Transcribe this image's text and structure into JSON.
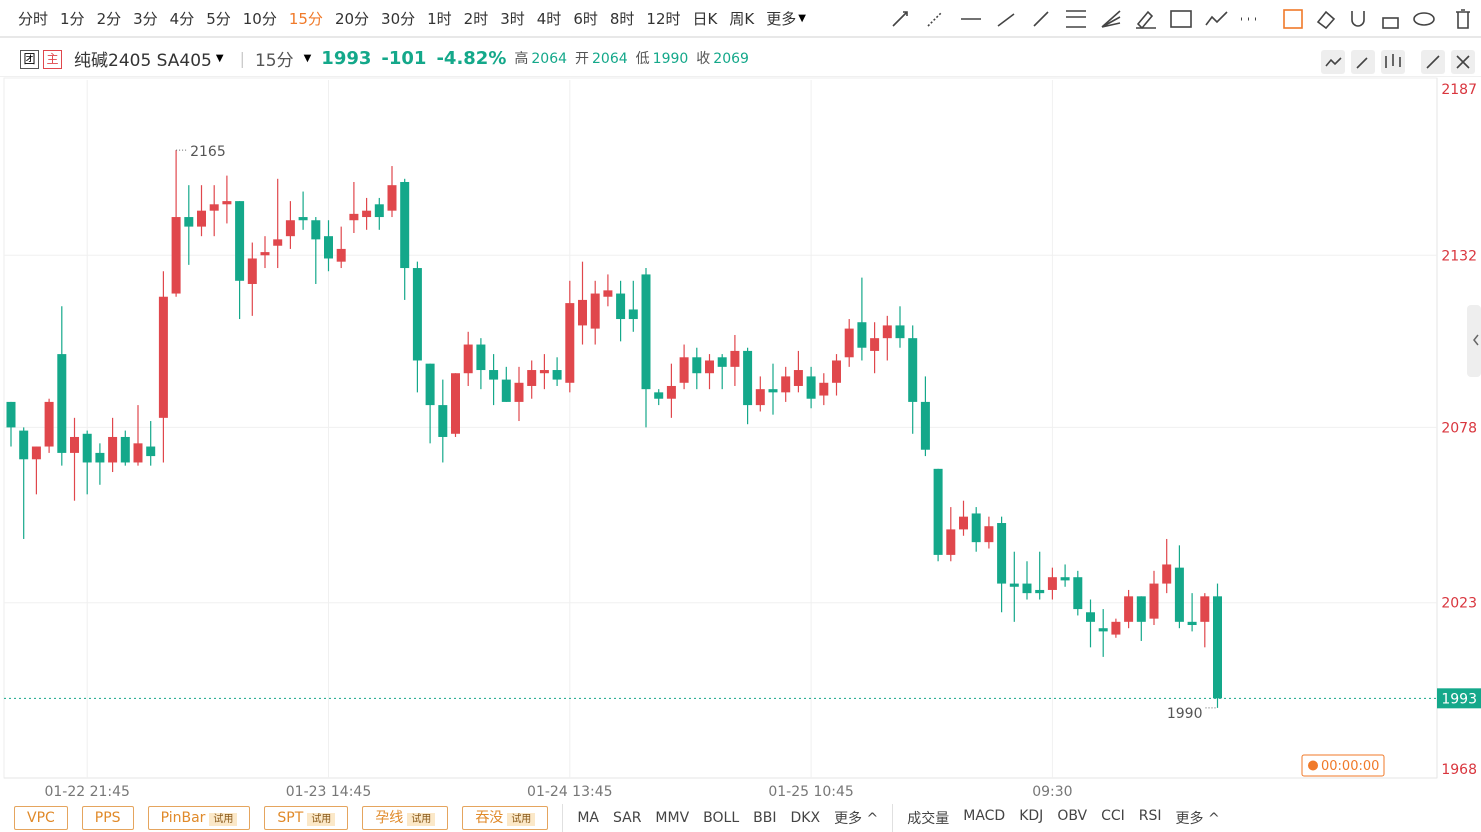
{
  "toolbar": {
    "periods": [
      "分时",
      "1分",
      "2分",
      "3分",
      "4分",
      "5分",
      "10分",
      "15分",
      "20分",
      "30分",
      "1时",
      "2时",
      "3时",
      "4时",
      "6时",
      "8时",
      "12时",
      "日K",
      "周K"
    ],
    "more": "更多"
  },
  "symbol": {
    "badges": [
      "团",
      "主"
    ],
    "name": "纯碱2405 SA405",
    "period": "15分",
    "last": "1993",
    "change": "-101",
    "change_pct": "-4.82%",
    "stats": [
      {
        "label": "高",
        "value": "2064"
      },
      {
        "label": "开",
        "value": "2064"
      },
      {
        "label": "低",
        "value": "1990"
      },
      {
        "label": "收",
        "value": "2069"
      }
    ]
  },
  "chart_data": {
    "type": "candlestick",
    "categories": [
      null,
      null,
      null,
      null,
      null,
      null,
      "01-22 21:45",
      null,
      null,
      null,
      null,
      null,
      null,
      null,
      null,
      null,
      null,
      null,
      null,
      null,
      null,
      null,
      null,
      null,
      null,
      "01-23 14:45",
      null,
      null,
      null,
      null,
      null,
      null,
      null,
      null,
      null,
      null,
      null,
      null,
      null,
      null,
      null,
      null,
      null,
      null,
      "01-24 13:45",
      null,
      null,
      null,
      null,
      null,
      null,
      null,
      null,
      null,
      null,
      null,
      null,
      null,
      null,
      null,
      null,
      null,
      null,
      "01-25 10:45",
      null,
      null,
      null,
      null,
      null,
      null,
      null,
      null,
      null,
      null,
      null,
      null,
      null,
      null,
      null,
      null,
      null,
      null,
      "09:30",
      null,
      null,
      null,
      null,
      null,
      null,
      null,
      null,
      null,
      null,
      null,
      null,
      null
    ],
    "open": [
      2086,
      2077,
      2068,
      2072,
      2101,
      2070,
      2076,
      2070,
      2067,
      2075,
      2067,
      2072,
      2081,
      2120,
      2144,
      2141,
      2146,
      2148,
      2149,
      2123,
      2132,
      2135,
      2138,
      2144,
      2143,
      2138,
      2130,
      2143,
      2144,
      2148,
      2146,
      2155,
      2128,
      2098,
      2085,
      2076,
      2095,
      2104,
      2096,
      2093,
      2086,
      2091,
      2095,
      2096,
      2092,
      2110,
      2109,
      2119,
      2120,
      2115,
      2126,
      2089,
      2087,
      2092,
      2100,
      2095,
      2100,
      2097,
      2102,
      2085,
      2090,
      2089,
      2091,
      2094,
      2088,
      2092,
      2100,
      2111,
      2102,
      2106,
      2110,
      2106,
      2086,
      2065,
      2038,
      2046,
      2051,
      2042,
      2048,
      2029,
      2029,
      2027,
      2027,
      2031,
      2031,
      2020,
      2015,
      2013,
      2017,
      2025,
      2018,
      2029,
      2034,
      2017,
      2017,
      2025
    ],
    "high": [
      2086,
      2078,
      2072,
      2087,
      2116,
      2081,
      2077,
      2073,
      2081,
      2077,
      2085,
      2080,
      2127,
      2165,
      2154,
      2154,
      2154,
      2157,
      2149,
      2136,
      2138,
      2156,
      2149,
      2152,
      2144,
      2143,
      2141,
      2155,
      2150,
      2150,
      2160,
      2156,
      2130,
      2098,
      2093,
      2095,
      2108,
      2106,
      2101,
      2097,
      2097,
      2099,
      2101,
      2100,
      2124,
      2130,
      2124,
      2126,
      2124,
      2124,
      2128,
      2090,
      2098,
      2104,
      2103,
      2101,
      2101,
      2107,
      2103,
      2094,
      2098,
      2097,
      2102,
      2097,
      2095,
      2101,
      2112,
      2125,
      2111,
      2113,
      2116,
      2110,
      2094,
      2065,
      2053,
      2055,
      2053,
      2050,
      2050,
      2039,
      2036,
      2039,
      2034,
      2035,
      2033,
      2024,
      2021,
      2018,
      2027,
      2025,
      2033,
      2043,
      2041,
      2026,
      2026,
      2029
    ],
    "low": [
      2072,
      2043,
      2057,
      2070,
      2066,
      2055,
      2057,
      2060,
      2064,
      2066,
      2066,
      2066,
      2067,
      2119,
      2129,
      2138,
      2138,
      2142,
      2112,
      2113,
      2128,
      2128,
      2134,
      2140,
      2123,
      2127,
      2128,
      2139,
      2140,
      2140,
      2144,
      2118,
      2089,
      2073,
      2067,
      2075,
      2091,
      2090,
      2085,
      2086,
      2080,
      2087,
      2090,
      2091,
      2089,
      2104,
      2104,
      2116,
      2105,
      2108,
      2078,
      2085,
      2081,
      2090,
      2090,
      2090,
      2090,
      2091,
      2079,
      2083,
      2082,
      2086,
      2089,
      2084,
      2085,
      2088,
      2097,
      2099,
      2095,
      2099,
      2103,
      2076,
      2069,
      2036,
      2036,
      2044,
      2039,
      2040,
      2020,
      2017,
      2024,
      2024,
      2024,
      2028,
      2019,
      2009,
      2006,
      2012,
      2015,
      2011,
      2016,
      2026,
      2015,
      2014,
      2009,
      1990
    ],
    "close": [
      2078,
      2068,
      2072,
      2086,
      2070,
      2075,
      2067,
      2067,
      2075,
      2067,
      2073,
      2069,
      2119,
      2144,
      2141,
      2146,
      2148,
      2149,
      2124,
      2131,
      2133,
      2137,
      2143,
      2143,
      2137,
      2131,
      2134,
      2145,
      2146,
      2144,
      2154,
      2128,
      2099,
      2085,
      2075,
      2095,
      2104,
      2096,
      2093,
      2086,
      2092,
      2096,
      2096,
      2093,
      2117,
      2118,
      2120,
      2121,
      2112,
      2112,
      2090,
      2087,
      2091,
      2100,
      2095,
      2099,
      2097,
      2102,
      2085,
      2090,
      2089,
      2094,
      2096,
      2087,
      2092,
      2099,
      2109,
      2103,
      2106,
      2110,
      2106,
      2086,
      2071,
      2038,
      2046,
      2050,
      2042,
      2047,
      2029,
      2028,
      2026,
      2026,
      2031,
      2030,
      2021,
      2017,
      2014,
      2017,
      2025,
      2017,
      2029,
      2035,
      2017,
      2016,
      2025,
      1993
    ],
    "up_color": "#e0474c",
    "down_color": "#14a88a",
    "ylim": [
      1968,
      2187
    ],
    "yticks": [
      1968,
      2023,
      2078,
      2132,
      2187
    ],
    "tick_color": "#d9363e",
    "grid": true,
    "high_label": 2165,
    "low_label": 1990,
    "last_price": 1993,
    "last_price_color": "#14a88a"
  },
  "timer": "00:00:00",
  "pattern_buttons": [
    {
      "label": "VPC"
    },
    {
      "label": "PPS"
    },
    {
      "label": "PinBar",
      "tag": "试用"
    },
    {
      "label": "SPT",
      "tag": "试用"
    },
    {
      "label": "孕线",
      "tag": "试用"
    },
    {
      "label": "吞没",
      "tag": "试用"
    }
  ],
  "main_indicators": [
    "MA",
    "SAR",
    "MMV",
    "BOLL",
    "BBI",
    "DKX"
  ],
  "main_more": "更多",
  "sub_indicators": [
    "成交量",
    "MACD",
    "KDJ",
    "OBV",
    "CCI",
    "RSI"
  ],
  "sub_more": "更多"
}
